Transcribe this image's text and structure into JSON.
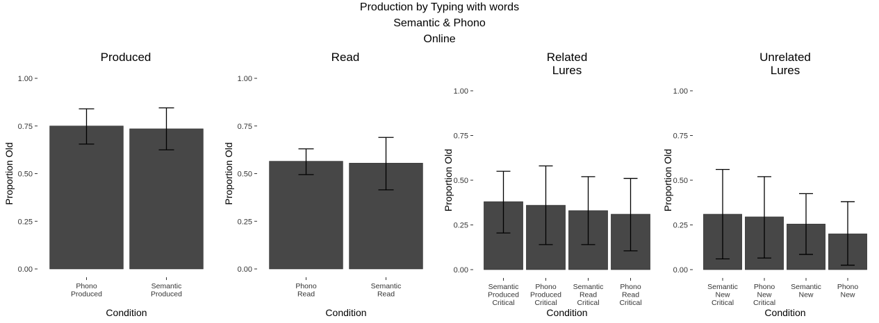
{
  "figure": {
    "title_lines": [
      "Production by Typing with words",
      "Semantic & Phono",
      "Online"
    ]
  },
  "chart_data": [
    {
      "type": "bar",
      "title_lines": [
        "Produced"
      ],
      "categories": [
        [
          "Phono",
          "Produced"
        ],
        [
          "Semantic",
          "Produced"
        ]
      ],
      "values": [
        0.75,
        0.735
      ],
      "error_low": [
        0.655,
        0.625
      ],
      "error_high": [
        0.84,
        0.845
      ],
      "xlabel": "Condition",
      "ylabel": "Proportion Old",
      "ylim": [
        0,
        1
      ],
      "yticks": [
        "0.00",
        "0.25",
        "0.50",
        "0.75",
        "1.00"
      ],
      "grid": false,
      "bar_color": "#474747"
    },
    {
      "type": "bar",
      "title_lines": [
        "Read"
      ],
      "categories": [
        [
          "Phono",
          "Read"
        ],
        [
          "Semantic",
          "Read"
        ]
      ],
      "values": [
        0.565,
        0.555
      ],
      "error_low": [
        0.495,
        0.415
      ],
      "error_high": [
        0.63,
        0.69
      ],
      "xlabel": "Condition",
      "ylabel": "Proportion Old",
      "ylim": [
        0,
        1
      ],
      "yticks": [
        "0.00",
        "0.25",
        "0.50",
        "0.75",
        "1.00"
      ],
      "grid": false,
      "bar_color": "#474747"
    },
    {
      "type": "bar",
      "title_lines": [
        "Related",
        "Lures"
      ],
      "categories": [
        [
          "Semantic",
          "Produced",
          "Critical"
        ],
        [
          "Phono",
          "Produced",
          "Critical"
        ],
        [
          "Semantic",
          "Read",
          "Critical"
        ],
        [
          "Phono",
          "Read",
          "Critical"
        ]
      ],
      "values": [
        0.38,
        0.36,
        0.33,
        0.31
      ],
      "error_low": [
        0.205,
        0.14,
        0.14,
        0.105
      ],
      "error_high": [
        0.55,
        0.58,
        0.52,
        0.51
      ],
      "xlabel": "Condition",
      "ylabel": "Proportion Old",
      "ylim": [
        0,
        1
      ],
      "yticks": [
        "0.00",
        "0.25",
        "0.50",
        "0.75",
        "1.00"
      ],
      "grid": false,
      "bar_color": "#474747"
    },
    {
      "type": "bar",
      "title_lines": [
        "Unrelated",
        "Lures"
      ],
      "categories": [
        [
          "Semantic",
          "New",
          "Critical"
        ],
        [
          "Phono",
          "New",
          "Critical"
        ],
        [
          "Semantic",
          "New"
        ],
        [
          "Phono",
          "New"
        ]
      ],
      "values": [
        0.31,
        0.295,
        0.255,
        0.2
      ],
      "error_low": [
        0.06,
        0.065,
        0.085,
        0.025
      ],
      "error_high": [
        0.56,
        0.52,
        0.425,
        0.38
      ],
      "xlabel": "Condition",
      "ylabel": "Proportion Old",
      "ylim": [
        0,
        1
      ],
      "yticks": [
        "0.00",
        "0.25",
        "0.50",
        "0.75",
        "1.00"
      ],
      "grid": false,
      "bar_color": "#474747"
    }
  ]
}
